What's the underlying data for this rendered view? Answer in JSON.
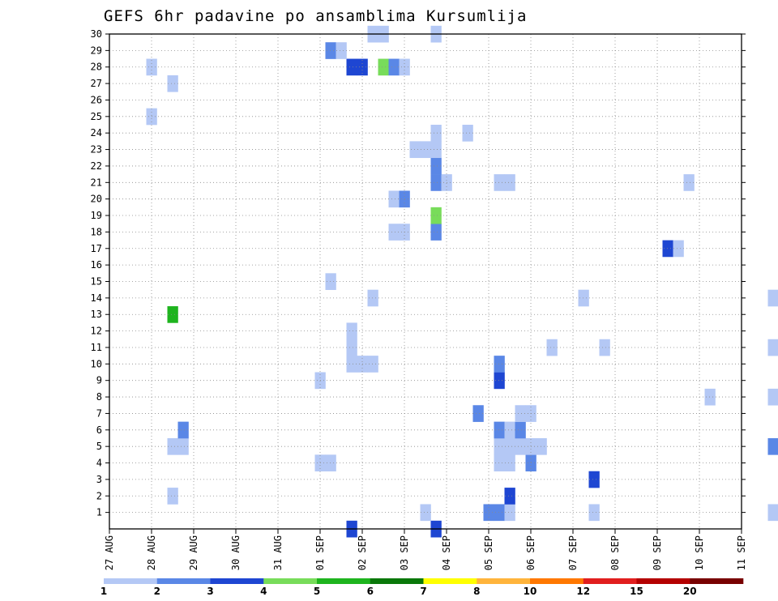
{
  "chart_data": {
    "type": "heatmap",
    "title": "GEFS 6hr padavine po ansamblima Kursumlija",
    "x_tick_labels": [
      "27 AUG",
      "28 AUG",
      "29 AUG",
      "30 AUG",
      "31 AUG",
      "01 SEP",
      "02 SEP",
      "03 SEP",
      "04 SEP",
      "05 SEP",
      "06 SEP",
      "07 SEP",
      "08 SEP",
      "09 SEP",
      "10 SEP",
      "11 SEP"
    ],
    "x_range_days": [
      0,
      15
    ],
    "x_step_hours": 6,
    "y_range": [
      0,
      30
    ],
    "y_ticks": [
      1,
      2,
      3,
      4,
      5,
      6,
      7,
      8,
      9,
      10,
      11,
      12,
      13,
      14,
      15,
      16,
      17,
      18,
      19,
      20,
      21,
      22,
      23,
      24,
      25,
      26,
      27,
      28,
      29,
      30
    ],
    "grid": true,
    "colorbar": {
      "levels": [
        "1",
        "2",
        "3",
        "4",
        "5",
        "6",
        "7",
        "8",
        "10",
        "12",
        "15",
        "20"
      ],
      "colors": [
        "#b4c8f5",
        "#5a87e6",
        "#1e46d2",
        "#78dc5a",
        "#1eb41e",
        "#0a780a",
        "#ffff00",
        "#ffb43c",
        "#ff7800",
        "#e11e1e",
        "#b40000",
        "#780000"
      ]
    },
    "series": [
      {
        "member": 0,
        "cells": [
          [
            23,
            3
          ],
          [
            31,
            3
          ]
        ]
      },
      {
        "member": 1,
        "cells": [
          [
            30,
            1
          ],
          [
            36,
            2
          ],
          [
            37,
            2
          ],
          [
            38,
            1
          ],
          [
            46,
            1
          ],
          [
            63,
            1
          ],
          [
            94,
            1
          ],
          [
            95,
            4
          ],
          [
            96,
            1
          ]
        ]
      },
      {
        "member": 2,
        "cells": [
          [
            6,
            1
          ],
          [
            38,
            3
          ],
          [
            64,
            1
          ],
          [
            84,
            3
          ],
          [
            85,
            1
          ],
          [
            99,
            1
          ],
          [
            100,
            3
          ]
        ]
      },
      {
        "member": 3,
        "cells": [
          [
            46,
            3
          ]
        ]
      },
      {
        "member": 4,
        "cells": [
          [
            20,
            1
          ],
          [
            21,
            1
          ],
          [
            37,
            1
          ],
          [
            38,
            1
          ],
          [
            40,
            2
          ]
        ]
      },
      {
        "member": 5,
        "cells": [
          [
            6,
            1
          ],
          [
            7,
            1
          ],
          [
            37,
            1
          ],
          [
            38,
            1
          ],
          [
            39,
            1
          ],
          [
            40,
            1
          ],
          [
            41,
            1
          ],
          [
            63,
            2
          ],
          [
            69,
            1
          ],
          [
            70,
            5
          ],
          [
            84,
            1
          ],
          [
            85,
            1
          ],
          [
            86,
            5
          ]
        ]
      },
      {
        "member": 6,
        "cells": [
          [
            7,
            2
          ],
          [
            37,
            2
          ],
          [
            38,
            1
          ],
          [
            39,
            2
          ]
        ]
      },
      {
        "member": 7,
        "cells": [
          [
            35,
            2
          ],
          [
            39,
            1
          ],
          [
            40,
            1
          ],
          [
            86,
            2
          ],
          [
            87,
            1
          ],
          [
            120,
            1
          ]
        ]
      },
      {
        "member": 8,
        "cells": [
          [
            57,
            1
          ],
          [
            63,
            1
          ],
          [
            119,
            2
          ],
          [
            120,
            4
          ]
        ]
      },
      {
        "member": 9,
        "cells": [
          [
            20,
            1
          ],
          [
            37,
            3
          ],
          [
            77,
            1
          ],
          [
            78,
            2
          ]
        ]
      },
      {
        "member": 10,
        "cells": [
          [
            23,
            1
          ],
          [
            24,
            1
          ],
          [
            25,
            1
          ],
          [
            37,
            2
          ],
          [
            84,
            3
          ],
          [
            85,
            3
          ],
          [
            119,
            1
          ],
          [
            120,
            1
          ]
        ]
      },
      {
        "member": 11,
        "cells": [
          [
            23,
            1
          ],
          [
            42,
            1
          ],
          [
            47,
            1
          ],
          [
            63,
            1
          ],
          [
            71,
            1
          ],
          [
            77,
            1
          ]
        ]
      },
      {
        "member": 12,
        "cells": [
          [
            23,
            1
          ]
        ]
      },
      {
        "member": 13,
        "cells": [
          [
            6,
            5
          ]
        ]
      },
      {
        "member": 14,
        "cells": [
          [
            25,
            1
          ],
          [
            45,
            1
          ],
          [
            63,
            1
          ]
        ]
      },
      {
        "member": 15,
        "cells": [
          [
            21,
            1
          ]
        ]
      },
      {
        "member": 16,
        "cells": []
      },
      {
        "member": 17,
        "cells": [
          [
            53,
            3
          ],
          [
            54,
            1
          ]
        ]
      },
      {
        "member": 18,
        "cells": [
          [
            27,
            1
          ],
          [
            28,
            1
          ],
          [
            31,
            2
          ]
        ]
      },
      {
        "member": 19,
        "cells": [
          [
            31,
            4
          ],
          [
            101,
            6
          ],
          [
            102,
            2
          ]
        ]
      },
      {
        "member": 20,
        "cells": [
          [
            27,
            1
          ],
          [
            28,
            2
          ]
        ]
      },
      {
        "member": 21,
        "cells": [
          [
            31,
            2
          ],
          [
            32,
            1
          ],
          [
            37,
            1
          ],
          [
            38,
            1
          ],
          [
            55,
            1
          ]
        ]
      },
      {
        "member": 22,
        "cells": [
          [
            31,
            2
          ]
        ]
      },
      {
        "member": 23,
        "cells": [
          [
            29,
            1
          ],
          [
            30,
            1
          ],
          [
            31,
            1
          ],
          [
            86,
            2
          ],
          [
            87,
            2
          ],
          [
            88,
            4
          ],
          [
            89,
            3
          ],
          [
            90,
            1
          ]
        ]
      },
      {
        "member": 24,
        "cells": [
          [
            31,
            1
          ],
          [
            34,
            1
          ],
          [
            87,
            1
          ]
        ]
      },
      {
        "member": 25,
        "cells": [
          [
            4,
            1
          ]
        ]
      },
      {
        "member": 26,
        "cells": []
      },
      {
        "member": 27,
        "cells": [
          [
            6,
            1
          ],
          [
            77,
            1
          ],
          [
            82,
            2
          ],
          [
            83,
            3
          ]
        ]
      },
      {
        "member": 28,
        "cells": [
          [
            4,
            1
          ],
          [
            23,
            3
          ],
          [
            24,
            3
          ],
          [
            26,
            4
          ],
          [
            27,
            2
          ],
          [
            28,
            1
          ],
          [
            76,
            1
          ]
        ]
      },
      {
        "member": 29,
        "cells": [
          [
            21,
            2
          ],
          [
            22,
            1
          ]
        ]
      },
      {
        "member": 30,
        "cells": [
          [
            25,
            1
          ],
          [
            26,
            1
          ],
          [
            31,
            1
          ]
        ]
      }
    ]
  }
}
